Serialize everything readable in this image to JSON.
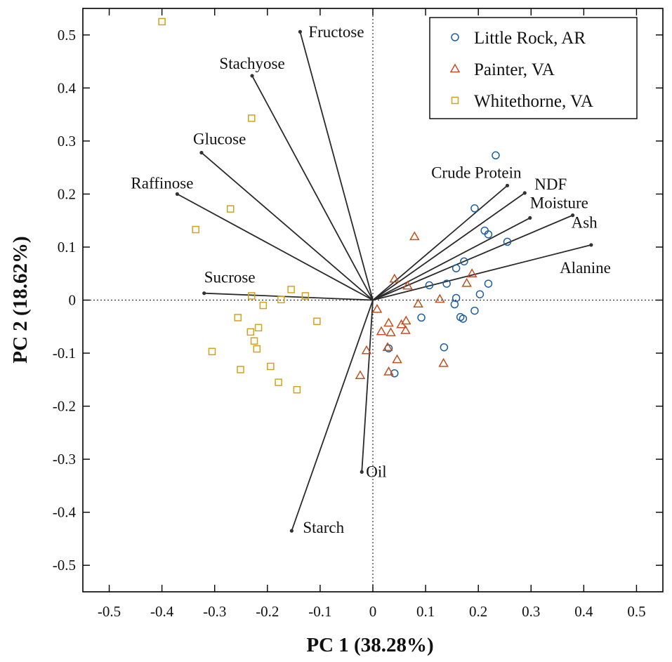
{
  "chart_data": {
    "type": "scatter",
    "title": "",
    "xlabel": "PC 1 (38.28%)",
    "ylabel": "PC 2 (18.62%)",
    "xlim": [
      -0.55,
      0.55
    ],
    "ylim": [
      -0.55,
      0.55
    ],
    "xticks": [
      -0.5,
      -0.4,
      -0.3,
      -0.2,
      -0.1,
      0,
      0.1,
      0.2,
      0.3,
      0.4,
      0.5
    ],
    "yticks": [
      -0.5,
      -0.4,
      -0.3,
      -0.2,
      -0.1,
      0,
      0.1,
      0.2,
      0.3,
      0.4,
      0.5
    ],
    "xtick_labels": [
      "-0.5",
      "-0.4",
      "-0.3",
      "-0.2",
      "-0.1",
      "0",
      "0.1",
      "0.2",
      "0.3",
      "0.4",
      "0.5"
    ],
    "ytick_labels": [
      "-0.5",
      "-0.4",
      "-0.3",
      "-0.2",
      "-0.1",
      "0",
      "0.1",
      "0.2",
      "0.3",
      "0.4",
      "0.5"
    ],
    "grid": false,
    "legend_position": "top-right",
    "series": [
      {
        "name": "Little Rock, AR",
        "marker": "circle",
        "color": "#1f5f9e",
        "points": [
          [
            0.233,
            0.273
          ],
          [
            0.193,
            0.173
          ],
          [
            0.212,
            0.131
          ],
          [
            0.219,
            0.124
          ],
          [
            0.255,
            0.11
          ],
          [
            0.173,
            0.073
          ],
          [
            0.158,
            0.06
          ],
          [
            0.14,
            0.031
          ],
          [
            0.107,
            0.028
          ],
          [
            0.219,
            0.031
          ],
          [
            0.203,
            0.011
          ],
          [
            0.158,
            0.004
          ],
          [
            0.155,
            -0.008
          ],
          [
            0.193,
            -0.02
          ],
          [
            0.166,
            -0.032
          ],
          [
            0.171,
            -0.035
          ],
          [
            0.092,
            -0.033
          ],
          [
            0.135,
            -0.089
          ],
          [
            0.03,
            -0.091
          ],
          [
            0.041,
            -0.138
          ]
        ]
      },
      {
        "name": "Painter, VA",
        "marker": "triangle",
        "color": "#c0501f",
        "points": [
          [
            0.079,
            0.12
          ],
          [
            0.041,
            0.04
          ],
          [
            0.066,
            0.027
          ],
          [
            0.188,
            0.05
          ],
          [
            0.178,
            0.032
          ],
          [
            0.127,
            0.002
          ],
          [
            0.086,
            -0.007
          ],
          [
            0.008,
            -0.017
          ],
          [
            0.03,
            -0.043
          ],
          [
            0.063,
            -0.039
          ],
          [
            0.054,
            -0.046
          ],
          [
            0.016,
            -0.059
          ],
          [
            0.034,
            -0.061
          ],
          [
            0.062,
            -0.057
          ],
          [
            0.028,
            -0.089
          ],
          [
            0.046,
            -0.112
          ],
          [
            -0.012,
            -0.095
          ],
          [
            0.134,
            -0.119
          ],
          [
            0.03,
            -0.135
          ],
          [
            -0.024,
            -0.142
          ]
        ]
      },
      {
        "name": "Whitethorne, VA",
        "marker": "square",
        "color": "#d4a21a",
        "points": [
          [
            -0.4,
            0.525
          ],
          [
            -0.23,
            0.343
          ],
          [
            -0.27,
            0.172
          ],
          [
            -0.336,
            0.133
          ],
          [
            -0.155,
            0.02
          ],
          [
            -0.128,
            0.008
          ],
          [
            -0.23,
            0.008
          ],
          [
            -0.174,
            0.001
          ],
          [
            -0.208,
            -0.01
          ],
          [
            -0.106,
            -0.04
          ],
          [
            -0.256,
            -0.033
          ],
          [
            -0.217,
            -0.052
          ],
          [
            -0.232,
            -0.06
          ],
          [
            -0.225,
            -0.077
          ],
          [
            -0.22,
            -0.092
          ],
          [
            -0.305,
            -0.097
          ],
          [
            -0.194,
            -0.125
          ],
          [
            -0.251,
            -0.131
          ],
          [
            -0.179,
            -0.155
          ],
          [
            -0.144,
            -0.169
          ]
        ]
      }
    ],
    "loadings": [
      {
        "label": "Fructose",
        "x": -0.138,
        "y": 0.506,
        "label_anchor": "start",
        "label_dx": 12,
        "label_dy": 8
      },
      {
        "label": "Stachyose",
        "x": -0.229,
        "y": 0.423,
        "label_anchor": "middle",
        "label_dx": 0,
        "label_dy": -10
      },
      {
        "label": "Glucose",
        "x": -0.325,
        "y": 0.278,
        "label_anchor": "start",
        "label_dx": -12,
        "label_dy": -12
      },
      {
        "label": "Raffinose",
        "x": -0.371,
        "y": 0.2,
        "label_anchor": "start",
        "label_dx": -66,
        "label_dy": -8
      },
      {
        "label": "Sucrose",
        "x": -0.32,
        "y": 0.013,
        "label_anchor": "start",
        "label_dx": 0,
        "label_dy": -15
      },
      {
        "label": "Crude Protein",
        "x": 0.255,
        "y": 0.216,
        "label_anchor": "end",
        "label_dx": 20,
        "label_dy": -11
      },
      {
        "label": "NDF",
        "x": 0.288,
        "y": 0.202,
        "label_anchor": "start",
        "label_dx": 14,
        "label_dy": -5
      },
      {
        "label": "Moisture",
        "x": 0.298,
        "y": 0.155,
        "label_anchor": "start",
        "label_dx": 0,
        "label_dy": -14
      },
      {
        "label": "Ash",
        "x": 0.379,
        "y": 0.16,
        "label_anchor": "start",
        "label_dx": -2,
        "label_dy": 18
      },
      {
        "label": "Alanine",
        "x": 0.414,
        "y": 0.104,
        "label_anchor": "end",
        "label_dx": 28,
        "label_dy": 40
      },
      {
        "label": "Oil",
        "x": -0.021,
        "y": -0.324,
        "label_anchor": "start",
        "label_dx": 6,
        "label_dy": 7
      },
      {
        "label": "Starch",
        "x": -0.154,
        "y": -0.435,
        "label_anchor": "start",
        "label_dx": 16,
        "label_dy": 3
      }
    ]
  }
}
